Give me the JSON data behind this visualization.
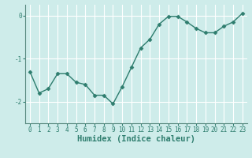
{
  "x": [
    0,
    1,
    2,
    3,
    4,
    5,
    6,
    7,
    8,
    9,
    10,
    11,
    12,
    13,
    14,
    15,
    16,
    17,
    18,
    19,
    20,
    21,
    22,
    23
  ],
  "y": [
    -1.3,
    -1.8,
    -1.7,
    -1.35,
    -1.35,
    -1.55,
    -1.6,
    -1.85,
    -1.85,
    -2.05,
    -1.65,
    -1.2,
    -0.75,
    -0.55,
    -0.2,
    -0.02,
    -0.02,
    -0.15,
    -0.3,
    -0.4,
    -0.4,
    -0.25,
    -0.15,
    0.05
  ],
  "line_color": "#2e7d6e",
  "marker": "D",
  "marker_size": 2.5,
  "background_color": "#ceecea",
  "grid_color": "#ffffff",
  "xlabel": "Humidex (Indice chaleur)",
  "ylim": [
    -2.5,
    0.25
  ],
  "xlim": [
    -0.5,
    23.5
  ],
  "yticks": [
    0,
    -1,
    -2
  ],
  "xticks": [
    0,
    1,
    2,
    3,
    4,
    5,
    6,
    7,
    8,
    9,
    10,
    11,
    12,
    13,
    14,
    15,
    16,
    17,
    18,
    19,
    20,
    21,
    22,
    23
  ],
  "tick_fontsize": 5.5,
  "xlabel_fontsize": 7.5,
  "line_width": 1.0
}
